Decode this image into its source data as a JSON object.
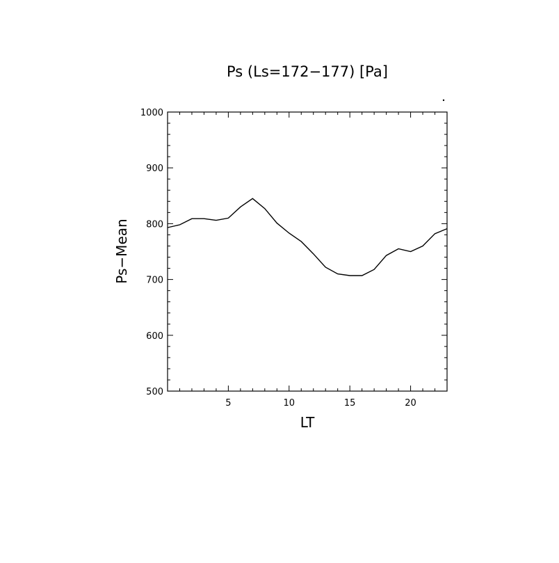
{
  "chart_data": {
    "type": "line",
    "title": "Ps (Ls=172−177) [Pa]",
    "xlabel": "LT",
    "ylabel": "Ps−Mean",
    "xlim": [
      0.0,
      23.0
    ],
    "ylim": [
      500,
      1000
    ],
    "x_ticks": [
      5,
      10,
      15,
      20
    ],
    "y_ticks": [
      500,
      600,
      700,
      800,
      900,
      1000
    ],
    "grid": false,
    "series": [
      {
        "x": [
          0,
          1,
          2,
          3,
          4,
          5,
          6,
          7,
          8,
          9,
          10,
          11,
          12,
          13,
          14,
          15,
          16,
          17,
          18,
          19,
          20,
          21,
          22,
          23
        ],
        "values": [
          793,
          798,
          809,
          809,
          806,
          810,
          830,
          845,
          827,
          801,
          783,
          768,
          746,
          722,
          710,
          707,
          707,
          718,
          743,
          755,
          750,
          760,
          782,
          791
        ]
      }
    ]
  }
}
